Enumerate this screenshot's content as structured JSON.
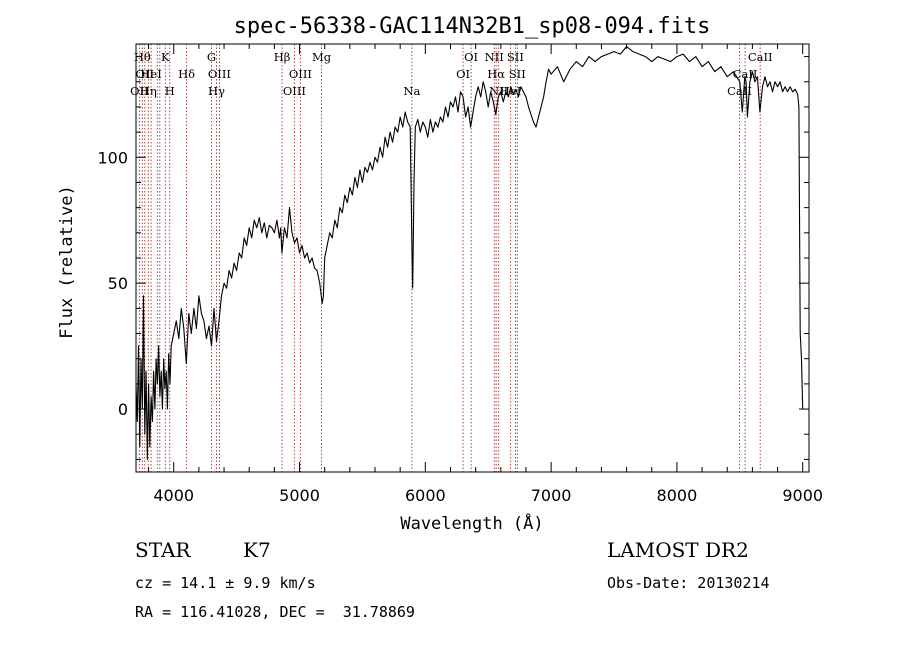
{
  "chart_data": {
    "type": "line",
    "title": "spec-56338-GAC114N32B1_sp08-094.fits",
    "xlabel": "Wavelength (Å)",
    "ylabel": "Flux (relative)",
    "xlim": [
      3700,
      9050
    ],
    "ylim": [
      -25,
      145
    ],
    "xticks": [
      4000,
      5000,
      6000,
      7000,
      8000,
      9000
    ],
    "yticks": [
      0,
      50,
      100
    ],
    "grid": false,
    "series": [
      {
        "points": [
          [
            3700,
            10
          ],
          [
            3710,
            -5
          ],
          [
            3720,
            25
          ],
          [
            3730,
            -15
          ],
          [
            3740,
            20
          ],
          [
            3750,
            0
          ],
          [
            3760,
            45
          ],
          [
            3770,
            -10
          ],
          [
            3780,
            15
          ],
          [
            3790,
            -20
          ],
          [
            3800,
            10
          ],
          [
            3810,
            -15
          ],
          [
            3820,
            5
          ],
          [
            3830,
            -5
          ],
          [
            3840,
            15
          ],
          [
            3850,
            0
          ],
          [
            3860,
            20
          ],
          [
            3870,
            10
          ],
          [
            3880,
            25
          ],
          [
            3890,
            5
          ],
          [
            3900,
            15
          ],
          [
            3910,
            0
          ],
          [
            3920,
            20
          ],
          [
            3930,
            8
          ],
          [
            3940,
            15
          ],
          [
            3950,
            0
          ],
          [
            3960,
            22
          ],
          [
            3970,
            10
          ],
          [
            3980,
            25
          ],
          [
            4000,
            30
          ],
          [
            4020,
            35
          ],
          [
            4040,
            28
          ],
          [
            4060,
            40
          ],
          [
            4080,
            32
          ],
          [
            4100,
            18
          ],
          [
            4120,
            38
          ],
          [
            4140,
            30
          ],
          [
            4160,
            40
          ],
          [
            4180,
            32
          ],
          [
            4200,
            45
          ],
          [
            4220,
            38
          ],
          [
            4240,
            35
          ],
          [
            4260,
            28
          ],
          [
            4280,
            33
          ],
          [
            4300,
            25
          ],
          [
            4320,
            40
          ],
          [
            4340,
            27
          ],
          [
            4360,
            35
          ],
          [
            4380,
            45
          ],
          [
            4400,
            50
          ],
          [
            4420,
            48
          ],
          [
            4440,
            55
          ],
          [
            4460,
            52
          ],
          [
            4480,
            58
          ],
          [
            4500,
            55
          ],
          [
            4520,
            62
          ],
          [
            4540,
            60
          ],
          [
            4560,
            68
          ],
          [
            4580,
            65
          ],
          [
            4600,
            72
          ],
          [
            4620,
            68
          ],
          [
            4640,
            75
          ],
          [
            4660,
            72
          ],
          [
            4680,
            76
          ],
          [
            4700,
            70
          ],
          [
            4720,
            74
          ],
          [
            4740,
            68
          ],
          [
            4760,
            73
          ],
          [
            4780,
            72
          ],
          [
            4800,
            70
          ],
          [
            4820,
            75
          ],
          [
            4840,
            68
          ],
          [
            4850,
            72
          ],
          [
            4860,
            62
          ],
          [
            4880,
            72
          ],
          [
            4900,
            68
          ],
          [
            4920,
            80
          ],
          [
            4940,
            70
          ],
          [
            4960,
            66
          ],
          [
            4980,
            68
          ],
          [
            5000,
            62
          ],
          [
            5020,
            65
          ],
          [
            5040,
            60
          ],
          [
            5060,
            62
          ],
          [
            5080,
            58
          ],
          [
            5100,
            60
          ],
          [
            5120,
            56
          ],
          [
            5140,
            55
          ],
          [
            5160,
            50
          ],
          [
            5180,
            42
          ],
          [
            5190,
            45
          ],
          [
            5200,
            60
          ],
          [
            5220,
            65
          ],
          [
            5240,
            70
          ],
          [
            5260,
            68
          ],
          [
            5280,
            75
          ],
          [
            5300,
            72
          ],
          [
            5320,
            80
          ],
          [
            5340,
            78
          ],
          [
            5360,
            85
          ],
          [
            5380,
            82
          ],
          [
            5400,
            88
          ],
          [
            5420,
            85
          ],
          [
            5440,
            92
          ],
          [
            5460,
            88
          ],
          [
            5480,
            95
          ],
          [
            5500,
            90
          ],
          [
            5520,
            96
          ],
          [
            5540,
            94
          ],
          [
            5560,
            98
          ],
          [
            5580,
            95
          ],
          [
            5600,
            100
          ],
          [
            5620,
            98
          ],
          [
            5640,
            104
          ],
          [
            5660,
            100
          ],
          [
            5680,
            108
          ],
          [
            5700,
            104
          ],
          [
            5720,
            110
          ],
          [
            5740,
            106
          ],
          [
            5760,
            112
          ],
          [
            5780,
            110
          ],
          [
            5800,
            116
          ],
          [
            5820,
            112
          ],
          [
            5840,
            118
          ],
          [
            5860,
            114
          ],
          [
            5880,
            112
          ],
          [
            5895,
            60
          ],
          [
            5900,
            48
          ],
          [
            5910,
            90
          ],
          [
            5920,
            112
          ],
          [
            5940,
            115
          ],
          [
            5960,
            110
          ],
          [
            5980,
            114
          ],
          [
            6000,
            112
          ],
          [
            6020,
            108
          ],
          [
            6040,
            115
          ],
          [
            6060,
            110
          ],
          [
            6080,
            114
          ],
          [
            6100,
            112
          ],
          [
            6120,
            116
          ],
          [
            6140,
            114
          ],
          [
            6160,
            120
          ],
          [
            6180,
            116
          ],
          [
            6200,
            122
          ],
          [
            6220,
            120
          ],
          [
            6240,
            124
          ],
          [
            6260,
            118
          ],
          [
            6280,
            126
          ],
          [
            6300,
            124
          ],
          [
            6320,
            116
          ],
          [
            6340,
            120
          ],
          [
            6360,
            112
          ],
          [
            6380,
            118
          ],
          [
            6400,
            124
          ],
          [
            6420,
            128
          ],
          [
            6440,
            124
          ],
          [
            6460,
            130
          ],
          [
            6480,
            126
          ],
          [
            6500,
            120
          ],
          [
            6520,
            126
          ],
          [
            6540,
            122
          ],
          [
            6560,
            117
          ],
          [
            6580,
            124
          ],
          [
            6600,
            126
          ],
          [
            6620,
            122
          ],
          [
            6640,
            126
          ],
          [
            6660,
            124
          ],
          [
            6680,
            128
          ],
          [
            6700,
            125
          ],
          [
            6720,
            127
          ],
          [
            6740,
            124
          ],
          [
            6760,
            128
          ],
          [
            6780,
            126
          ],
          [
            6800,
            124
          ],
          [
            6820,
            120
          ],
          [
            6840,
            117
          ],
          [
            6860,
            114
          ],
          [
            6880,
            112
          ],
          [
            6900,
            116
          ],
          [
            6920,
            120
          ],
          [
            6940,
            124
          ],
          [
            6960,
            130
          ],
          [
            6980,
            135
          ],
          [
            7000,
            133
          ],
          [
            7050,
            136
          ],
          [
            7100,
            130
          ],
          [
            7150,
            135
          ],
          [
            7200,
            138
          ],
          [
            7250,
            136
          ],
          [
            7300,
            140
          ],
          [
            7350,
            138
          ],
          [
            7400,
            140
          ],
          [
            7450,
            141
          ],
          [
            7500,
            142
          ],
          [
            7550,
            141
          ],
          [
            7600,
            144
          ],
          [
            7650,
            142
          ],
          [
            7700,
            141
          ],
          [
            7750,
            140
          ],
          [
            7800,
            138
          ],
          [
            7850,
            140
          ],
          [
            7900,
            139
          ],
          [
            7950,
            138
          ],
          [
            8000,
            140
          ],
          [
            8050,
            141
          ],
          [
            8100,
            138
          ],
          [
            8150,
            140
          ],
          [
            8200,
            136
          ],
          [
            8250,
            138
          ],
          [
            8300,
            134
          ],
          [
            8350,
            136
          ],
          [
            8400,
            132
          ],
          [
            8450,
            134
          ],
          [
            8500,
            130
          ],
          [
            8520,
            118
          ],
          [
            8540,
            132
          ],
          [
            8550,
            130
          ],
          [
            8560,
            116
          ],
          [
            8580,
            130
          ],
          [
            8600,
            134
          ],
          [
            8620,
            130
          ],
          [
            8640,
            132
          ],
          [
            8660,
            118
          ],
          [
            8680,
            128
          ],
          [
            8700,
            132
          ],
          [
            8720,
            128
          ],
          [
            8740,
            130
          ],
          [
            8760,
            126
          ],
          [
            8780,
            130
          ],
          [
            8800,
            128
          ],
          [
            8820,
            130
          ],
          [
            8840,
            126
          ],
          [
            8860,
            128
          ],
          [
            8880,
            126
          ],
          [
            8900,
            128
          ],
          [
            8920,
            126
          ],
          [
            8940,
            127
          ],
          [
            8960,
            125
          ],
          [
            8970,
            120
          ],
          [
            8980,
            30
          ],
          [
            8990,
            20
          ],
          [
            9000,
            0
          ]
        ]
      }
    ],
    "spectral_lines": [
      {
        "wavelength": 3727,
        "label": "OII",
        "row": 2
      },
      {
        "wavelength": 3750,
        "label": "Hθ",
        "row": 0
      },
      {
        "wavelength": 3770,
        "label": "OII",
        "row": 1
      },
      {
        "wavelength": 3798,
        "label": "Hη",
        "row": 2
      },
      {
        "wavelength": 3820,
        "label": "HeI",
        "row": 1
      },
      {
        "wavelength": 3869,
        "label": "",
        "row": 2
      },
      {
        "wavelength": 3889,
        "label": "",
        "row": 2
      },
      {
        "wavelength": 3933,
        "label": "K",
        "row": 0
      },
      {
        "wavelength": 3968,
        "label": "H",
        "row": 2
      },
      {
        "wavelength": 4102,
        "label": "Hδ",
        "row": 1
      },
      {
        "wavelength": 4300,
        "label": "G",
        "row": 0
      },
      {
        "wavelength": 4340,
        "label": "Hγ",
        "row": 2
      },
      {
        "wavelength": 4363,
        "label": "OIII",
        "row": 1
      },
      {
        "wavelength": 4861,
        "label": "Hβ",
        "row": 0
      },
      {
        "wavelength": 4959,
        "label": "OIII",
        "row": 2
      },
      {
        "wavelength": 5007,
        "label": "OIII",
        "row": 1
      },
      {
        "wavelength": 5175,
        "label": "Mg",
        "row": 0
      },
      {
        "wavelength": 5893,
        "label": "Na",
        "row": 2
      },
      {
        "wavelength": 6300,
        "label": "OI",
        "row": 1
      },
      {
        "wavelength": 6364,
        "label": "OI",
        "row": 0
      },
      {
        "wavelength": 6548,
        "label": "NII",
        "row": 0
      },
      {
        "wavelength": 6563,
        "label": "Hα",
        "row": 1
      },
      {
        "wavelength": 6583,
        "label": "NII",
        "row": 2
      },
      {
        "wavelength": 6678,
        "label": "HeI",
        "row": 2
      },
      {
        "wavelength": 6716,
        "label": "SII",
        "row": 0
      },
      {
        "wavelength": 6731,
        "label": "SII",
        "row": 1
      },
      {
        "wavelength": 8498,
        "label": "CaII",
        "row": 2
      },
      {
        "wavelength": 8542,
        "label": "CaII",
        "row": 1
      },
      {
        "wavelength": 8662,
        "label": "CaII",
        "row": 0
      }
    ]
  },
  "info": {
    "class": "STAR",
    "subclass": "K7",
    "survey": "LAMOST DR2",
    "cz": "cz = 14.1 ± 9.9 km/s",
    "obs_date": "Obs-Date: 20130214",
    "coords": "RA = 116.41028, DEC =  31.78869"
  }
}
